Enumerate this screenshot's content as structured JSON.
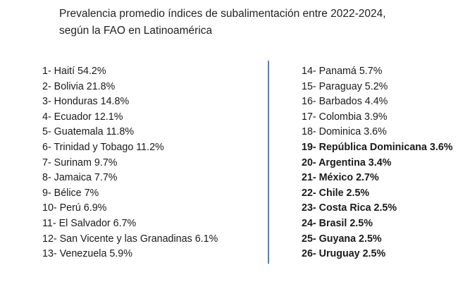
{
  "title": {
    "line1": "Prevalencia promedio índices de subalimentación entre 2022-2024,",
    "line2": "según la FAO en Latinoamérica"
  },
  "left_list": [
    {
      "text": "1- Haití 54.2%",
      "bold": false
    },
    {
      "text": "2- Bolivia 21.8%",
      "bold": false
    },
    {
      "text": "3- Honduras 14.8%",
      "bold": false
    },
    {
      "text": "4- Ecuador 12.1%",
      "bold": false
    },
    {
      "text": "5- Guatemala 11.8%",
      "bold": false
    },
    {
      "text": "6- Trinidad y Tobago 11.2%",
      "bold": false
    },
    {
      "text": "7- Surinam 9.7%",
      "bold": false
    },
    {
      "text": "8- Jamaica 7.7%",
      "bold": false
    },
    {
      "text": "9- Bélice 7%",
      "bold": false
    },
    {
      "text": "10- Perú 6.9%",
      "bold": false
    },
    {
      "text": "11- El Salvador 6.7%",
      "bold": false
    },
    {
      "text": "12- San Vicente y las Granadinas 6.1%",
      "bold": false
    },
    {
      "text": "13- Venezuela 5.9%",
      "bold": false
    }
  ],
  "right_list": [
    {
      "text": "14- Panamá 5.7%",
      "bold": false
    },
    {
      "text": "15- Paraguay 5.2%",
      "bold": false
    },
    {
      "text": "16- Barbados 4.4%",
      "bold": false
    },
    {
      "text": "17- Colombia 3.9%",
      "bold": false
    },
    {
      "text": "18- Dominica 3.6%",
      "bold": false
    },
    {
      "text": "19- República Dominicana 3.6%",
      "bold": true
    },
    {
      "text": "20- Argentina 3.4%",
      "bold": true
    },
    {
      "text": "21- México 2.7%",
      "bold": true
    },
    {
      "text": "22- Chile 2.5%",
      "bold": true
    },
    {
      "text": "23- Costa Rica 2.5%",
      "bold": true
    },
    {
      "text": "24- Brasil 2.5%",
      "bold": true
    },
    {
      "text": "25- Guyana 2.5%",
      "bold": true
    },
    {
      "text": "26- Uruguay 2.5%",
      "bold": true
    }
  ],
  "colors": {
    "divider": "#5b7fb0",
    "text": "#1a1a1a"
  }
}
